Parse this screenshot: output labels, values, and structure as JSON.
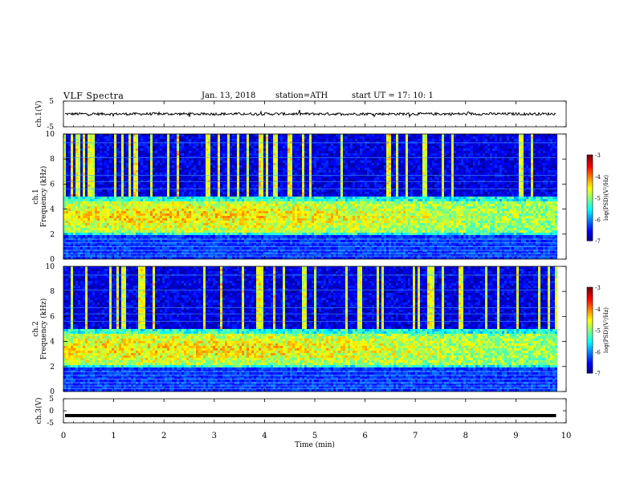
{
  "header": {
    "title": "VLF  Spectra",
    "date": "Jan. 13, 2018",
    "station": "station=ATH",
    "start": "start  UT  =    17: 10: 1"
  },
  "chart_data": [
    {
      "type": "line",
      "name": "ch1-waveform",
      "ylabel": "ch.1(V)",
      "ylim": [
        -5,
        5
      ],
      "yticks": [
        "5",
        "-5"
      ],
      "xlim": [
        0,
        10
      ],
      "trace_level": 0,
      "trace_noise_amplitude": 0.5,
      "trace_end_time": 9.8
    },
    {
      "type": "heatmap",
      "name": "ch1-spectrogram",
      "ylabel": "ch.1 Frequency (kHz)",
      "ylim": [
        0,
        10
      ],
      "yticks": [
        "0",
        "2",
        "4",
        "6",
        "8",
        "10"
      ],
      "xlim": [
        0,
        10
      ],
      "data_end_time": 9.8,
      "colorbar": {
        "label": "log(PSD)(V²/Hz)",
        "range": [
          -7,
          -3
        ],
        "ticks": [
          "-3",
          "-4",
          "-5",
          "-6",
          "-7"
        ]
      },
      "background_level_below_5kHz": -5.0,
      "enhanced_band_kHz": [
        2,
        5
      ],
      "enhanced_level": -4.2,
      "upper_band_level": -6.6
    },
    {
      "type": "heatmap",
      "name": "ch2-spectrogram",
      "ylabel": "ch.2 Frequency (kHz)",
      "ylim": [
        0,
        10
      ],
      "yticks": [
        "0",
        "2",
        "4",
        "6",
        "8",
        "10"
      ],
      "xlim": [
        0,
        10
      ],
      "data_end_time": 9.8,
      "colorbar": {
        "label": "log(PSD)(V²/Hz)",
        "range": [
          -7,
          -3
        ],
        "ticks": [
          "-3",
          "-4",
          "-5",
          "-6",
          "-7"
        ]
      },
      "background_level_below_5kHz": -5.0,
      "enhanced_band_kHz": [
        2,
        5
      ],
      "enhanced_level": -4.2,
      "upper_band_level": -6.6
    },
    {
      "type": "line",
      "name": "ch3-waveform",
      "ylabel": "ch.3(V)",
      "ylim": [
        -5,
        5
      ],
      "yticks": [
        "5",
        "0",
        "-5"
      ],
      "xlim": [
        0,
        10
      ],
      "trace_level": -2,
      "trace_end_time": 9.8
    }
  ],
  "xaxis": {
    "label": "Time  (min)",
    "ticks": [
      "0",
      "1",
      "2",
      "3",
      "4",
      "5",
      "6",
      "7",
      "8",
      "9",
      "10"
    ]
  }
}
